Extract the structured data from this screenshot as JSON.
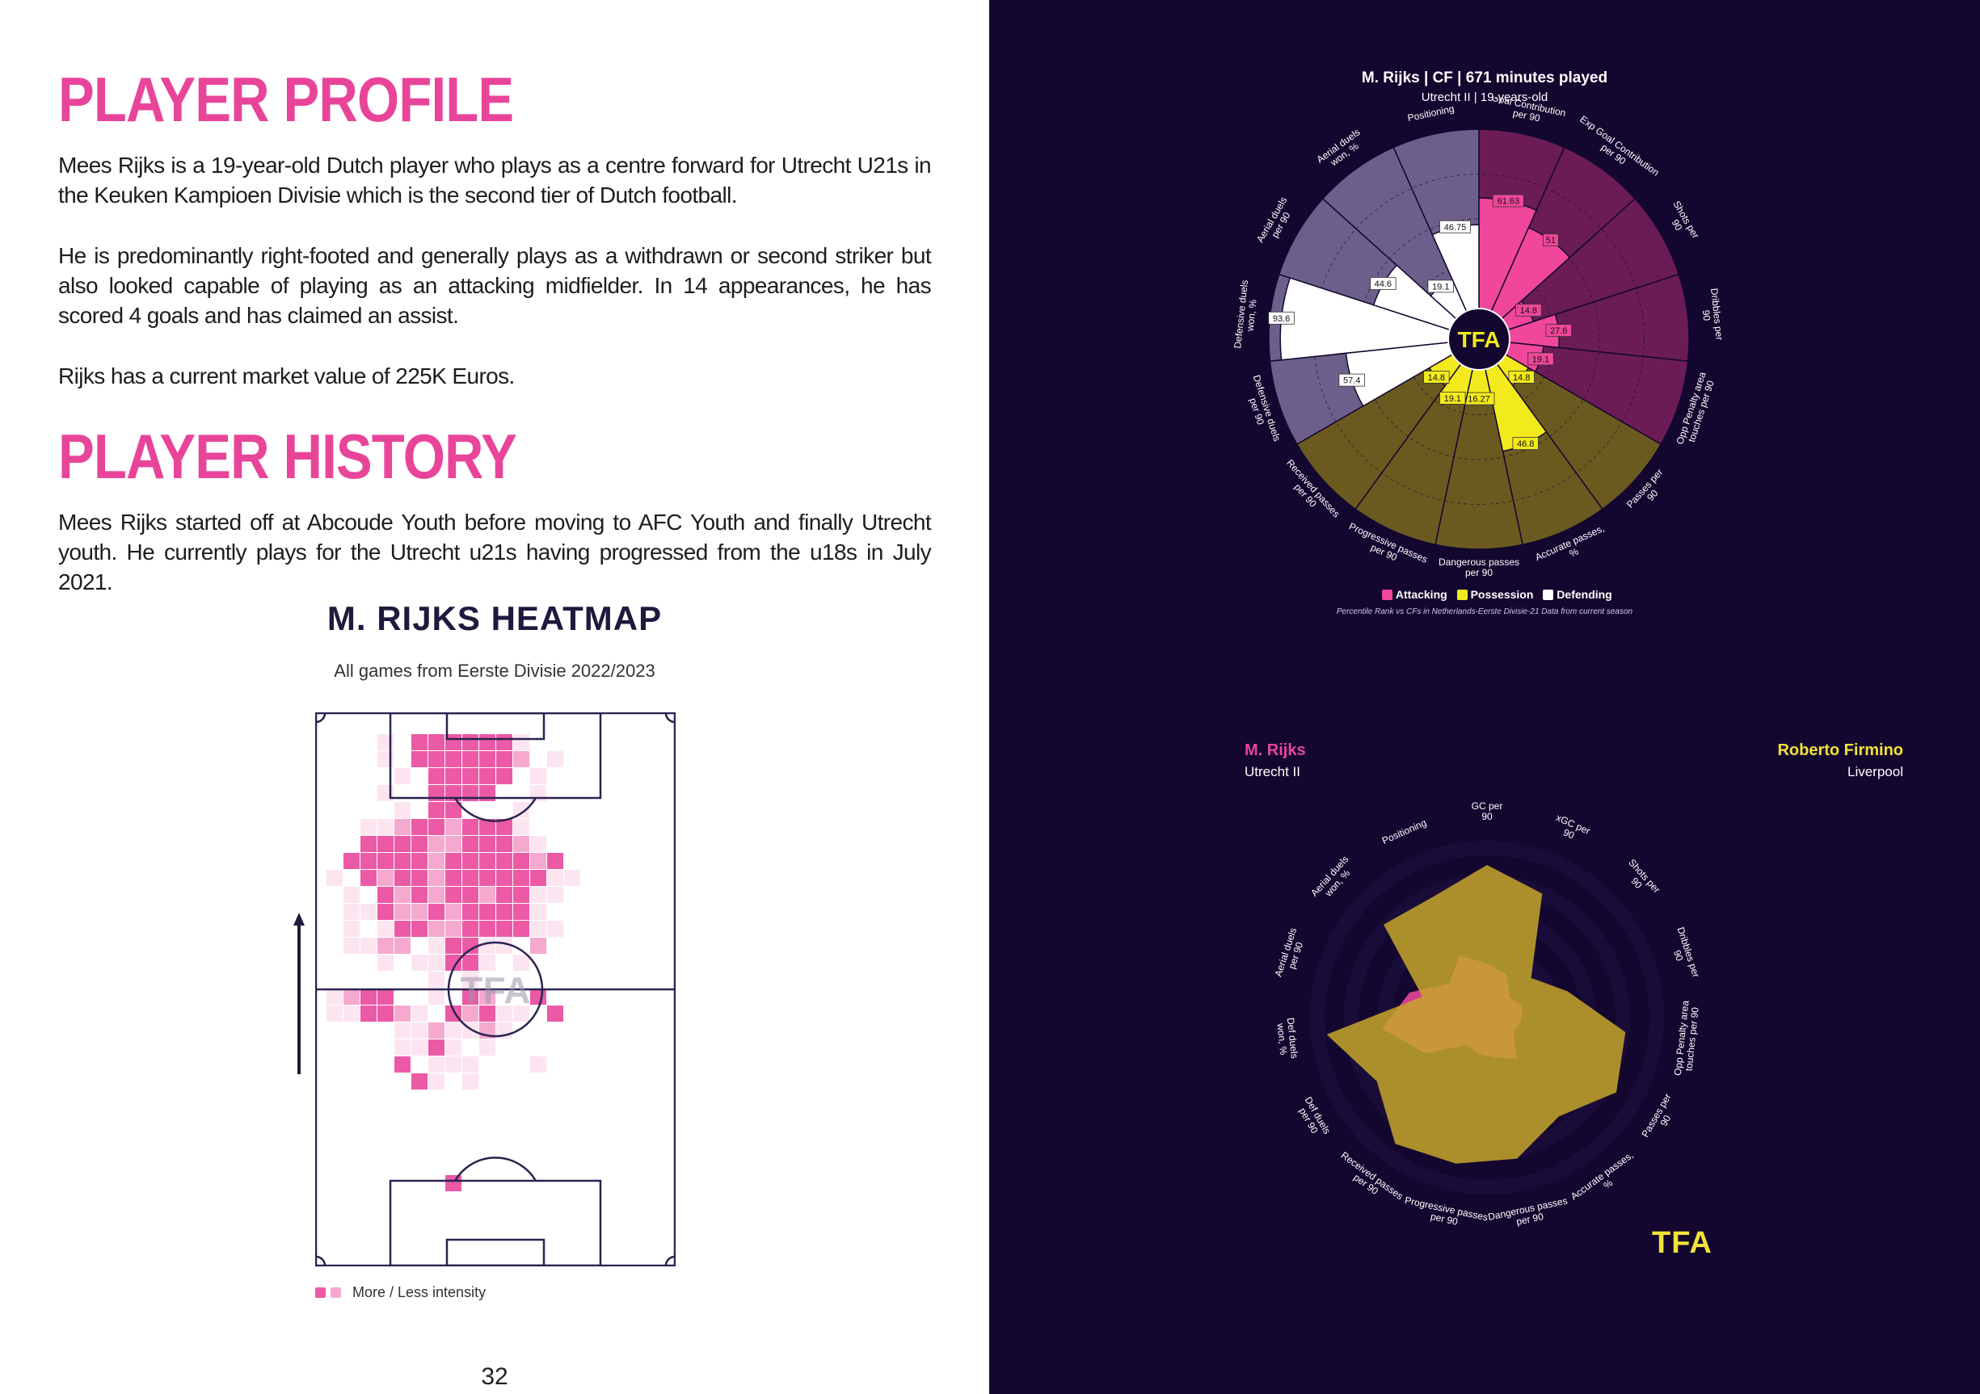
{
  "profile": {
    "heading": "PLAYER PROFILE",
    "p1": "Mees Rijks is a 19-year-old Dutch player who plays as a centre forward for Utrecht U21s in the Keuken Kampioen Divisie which is the second tier of Dutch football.",
    "p2": "He is predominantly right-footed and generally plays as a withdrawn or second striker but also looked capable of playing as an attacking midfielder. In 14 appearances, he has scored 4 goals and has claimed an assist.",
    "p3": "Rijks has a current market value of 225K Euros."
  },
  "history": {
    "heading": "PLAYER HISTORY",
    "p1": "Mees Rijks started off at Abcoude Youth before moving to AFC Youth and finally Utrecht youth. He currently plays for the Utrecht u21s having progressed from the u18s in July 2021."
  },
  "heatmap": {
    "title": "M. RIJKS HEATMAP",
    "subtitle": "All games from Eerste Divisie 2022/2023",
    "watermark": "TFA",
    "legend": "More / Less intensity",
    "colors": {
      "high": "#ec5aa6",
      "mid": "#f6a9cf",
      "low": "#fce5f1"
    }
  },
  "page_number": "32",
  "pizza": {
    "title": "M. Rijks | CF | 671 minutes played",
    "subtitle": "Utrecht II | 19-years-old",
    "center": "TFA",
    "legend": [
      "Attacking",
      "Possession",
      "Defending"
    ],
    "footnote": "Percentile Rank vs CFs in Netherlands-Eerste Divisie-21 Data from current season",
    "colors": {
      "attacking": "#f0479a",
      "possession": "#f2ea1c",
      "defending": "#ffffff",
      "attacking_bg": "#6b1c55",
      "possession_bg": "#6b5a20",
      "defending_bg": "#6d5f8c"
    },
    "slices": [
      {
        "label": "Goal Contribution per 90",
        "value": 61.63,
        "group": "attacking"
      },
      {
        "label": "Exp Goal Contribution per 90",
        "value": 51.0,
        "group": "attacking"
      },
      {
        "label": "Shots per 90",
        "value": 14.8,
        "group": "attacking"
      },
      {
        "label": "Dribbles per 90",
        "value": 27.6,
        "group": "attacking"
      },
      {
        "label": "Opp Penalty area touches per 90",
        "value": 19.1,
        "group": "attacking"
      },
      {
        "label": "Passes per 90",
        "value": 14.8,
        "group": "possession"
      },
      {
        "label": "Accurate passes, %",
        "value": 46.8,
        "group": "possession"
      },
      {
        "label": "Dangerous passes per 90",
        "value": 16.27,
        "group": "possession"
      },
      {
        "label": "Progressive passes per 90",
        "value": 19.1,
        "group": "possession"
      },
      {
        "label": "Received passes per 90",
        "value": 14.8,
        "group": "possession"
      },
      {
        "label": "Defensive duels per 90",
        "value": 57.4,
        "group": "defending"
      },
      {
        "label": "Defensive duels won, %",
        "value": 93.6,
        "group": "defending"
      },
      {
        "label": "Aerial duels per 90",
        "value": 44.6,
        "group": "defending"
      },
      {
        "label": "Aerial duels won, %",
        "value": 19.1,
        "group": "defending"
      },
      {
        "label": "Positioning",
        "value": 46.75,
        "group": "defending"
      }
    ]
  },
  "comparison": {
    "player1": {
      "name": "M. Rijks",
      "team": "Utrecht II",
      "color": "#e8459a"
    },
    "player2": {
      "name": "Roberto Firmino",
      "team": "Liverpool",
      "color": "#f2e23a"
    },
    "logo": "TFA",
    "axes": [
      "GC per 90",
      "xGC per 90",
      "Shots per 90",
      "Dribbles per 90",
      "Opp Penalty area touches per 90",
      "Passes per 90",
      "Accurate passes, %",
      "Dangerous passes per 90",
      "Progressive passes per 90",
      "Received passes per 90",
      "Def duels per 90",
      "Def duels won, %",
      "Aerial duels per 90",
      "Aerial duels won, %",
      "Positioning"
    ],
    "player1_values": [
      0.32,
      0.28,
      0.18,
      0.22,
      0.2,
      0.18,
      0.3,
      0.24,
      0.22,
      0.2,
      0.42,
      0.62,
      0.48,
      0.3,
      0.4
    ],
    "player2_values": [
      0.9,
      0.8,
      0.35,
      0.5,
      0.82,
      0.88,
      0.72,
      0.85,
      0.88,
      0.92,
      0.75,
      0.95,
      0.4,
      0.82,
      0.78
    ]
  }
}
